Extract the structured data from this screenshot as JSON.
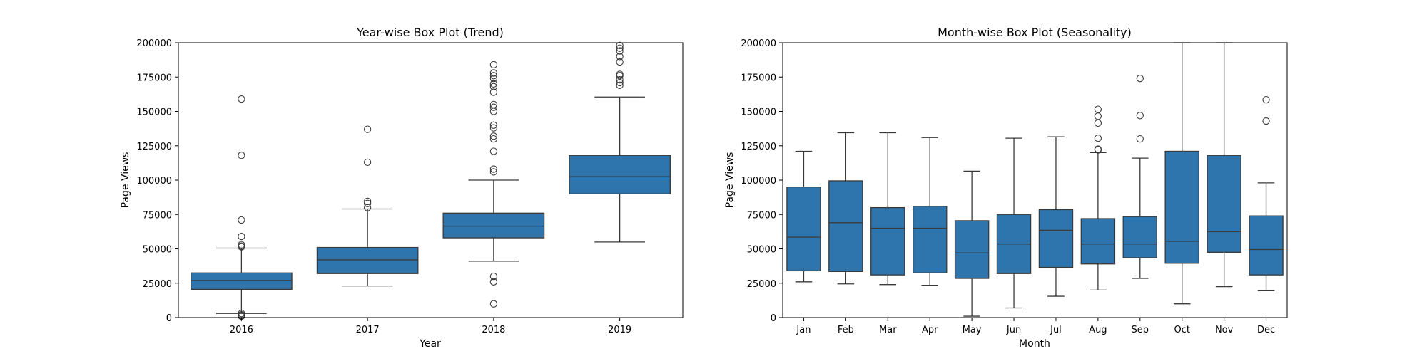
{
  "chart_data": [
    {
      "type": "box",
      "title": "Year-wise Box Plot (Trend)",
      "xlabel": "Year",
      "ylabel": "Page Views",
      "ylim": [
        0,
        200000
      ],
      "yticks": [
        "0",
        "25000",
        "50000",
        "75000",
        "100000",
        "125000",
        "150000",
        "175000",
        "200000"
      ],
      "color": "#2e75ad",
      "categories": [
        "2016",
        "2017",
        "2018",
        "2019"
      ],
      "boxes": [
        {
          "whislo": 3000,
          "q1": 20500,
          "med": 27000,
          "q3": 32500,
          "whishi": 50500,
          "fliers": [
            159000,
            118000,
            71000,
            59000,
            53000,
            52000,
            51500,
            3000,
            2000,
            1500,
            1000
          ]
        },
        {
          "whislo": 23000,
          "q1": 32000,
          "med": 42000,
          "q3": 51000,
          "whishi": 79000,
          "fliers": [
            137000,
            113000,
            84500,
            83000,
            80000
          ]
        },
        {
          "whislo": 41000,
          "q1": 58000,
          "med": 66500,
          "q3": 76000,
          "whishi": 100000,
          "fliers": [
            184000,
            178000,
            176000,
            174000,
            170000,
            168000,
            164000,
            155000,
            153000,
            150000,
            140000,
            138000,
            132000,
            130000,
            121000,
            108000,
            106000,
            30000,
            26000,
            10000
          ]
        },
        {
          "whislo": 55000,
          "q1": 90000,
          "med": 102500,
          "q3": 118000,
          "whishi": 160500,
          "fliers": [
            198000,
            196000,
            194000,
            190000,
            186000,
            177000,
            176000,
            173000,
            171000,
            169000
          ]
        }
      ]
    },
    {
      "type": "box",
      "title": "Month-wise Box Plot (Seasonality)",
      "xlabel": "Month",
      "ylabel": "Page Views",
      "ylim": [
        0,
        200000
      ],
      "yticks": [
        "0",
        "25000",
        "50000",
        "75000",
        "100000",
        "125000",
        "150000",
        "175000",
        "200000"
      ],
      "color": "#2e75ad",
      "categories": [
        "Jan",
        "Feb",
        "Mar",
        "Apr",
        "May",
        "Jun",
        "Jul",
        "Aug",
        "Sep",
        "Oct",
        "Nov",
        "Dec"
      ],
      "boxes": [
        {
          "whislo": 26000,
          "q1": 34000,
          "med": 58500,
          "q3": 95000,
          "whishi": 121000,
          "fliers": []
        },
        {
          "whislo": 24500,
          "q1": 33500,
          "med": 69000,
          "q3": 99500,
          "whishi": 134500,
          "fliers": []
        },
        {
          "whislo": 24000,
          "q1": 31000,
          "med": 65000,
          "q3": 80000,
          "whishi": 134500,
          "fliers": []
        },
        {
          "whislo": 23500,
          "q1": 32500,
          "med": 65000,
          "q3": 81000,
          "whishi": 131000,
          "fliers": []
        },
        {
          "whislo": 1000,
          "q1": 28500,
          "med": 47000,
          "q3": 70500,
          "whishi": 106500,
          "fliers": []
        },
        {
          "whislo": 7000,
          "q1": 32000,
          "med": 53500,
          "q3": 75000,
          "whishi": 130500,
          "fliers": []
        },
        {
          "whislo": 15500,
          "q1": 36500,
          "med": 63500,
          "q3": 78500,
          "whishi": 131500,
          "fliers": []
        },
        {
          "whislo": 20000,
          "q1": 39000,
          "med": 53500,
          "q3": 72000,
          "whishi": 120000,
          "fliers": [
            151500,
            146500,
            141500,
            130500,
            122500,
            122000
          ]
        },
        {
          "whislo": 28500,
          "q1": 43500,
          "med": 53500,
          "q3": 73500,
          "whishi": 116000,
          "fliers": [
            174000,
            147000,
            130000
          ]
        },
        {
          "whislo": 10000,
          "q1": 39500,
          "med": 55500,
          "q3": 121000,
          "whishi": 200000,
          "fliers": []
        },
        {
          "whislo": 22500,
          "q1": 47500,
          "med": 62500,
          "q3": 118000,
          "whishi": 200000,
          "fliers": []
        },
        {
          "whislo": 19500,
          "q1": 31000,
          "med": 49500,
          "q3": 74000,
          "whishi": 98000,
          "fliers": [
            158500,
            143000
          ]
        }
      ]
    }
  ]
}
